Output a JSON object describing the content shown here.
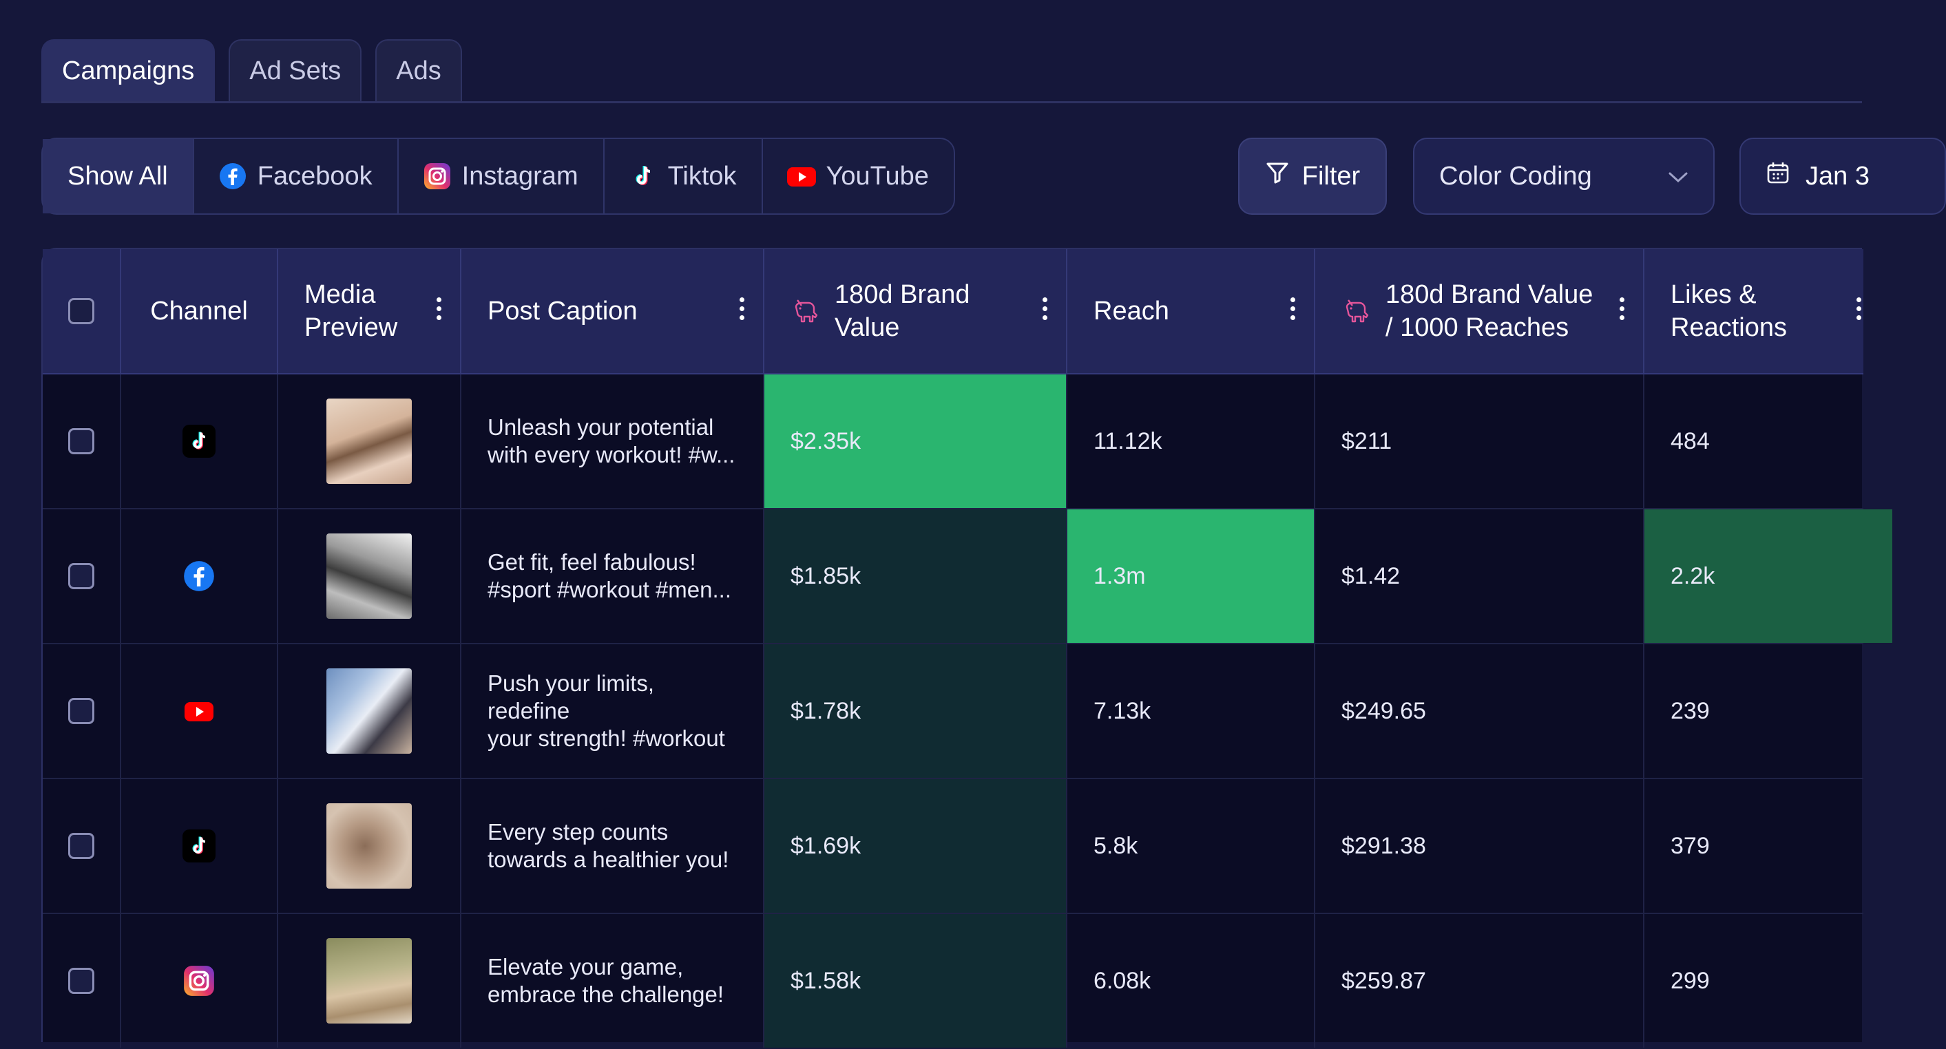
{
  "tabs": [
    "Campaigns",
    "Ad Sets",
    "Ads"
  ],
  "channel_filters": [
    {
      "label": "Show All",
      "icon": ""
    },
    {
      "label": "Facebook",
      "icon": "facebook-icon"
    },
    {
      "label": "Instagram",
      "icon": "instagram-icon"
    },
    {
      "label": "Tiktok",
      "icon": "tiktok-icon"
    },
    {
      "label": "YouTube",
      "icon": "youtube-icon"
    }
  ],
  "toolbar": {
    "filter_label": "Filter",
    "color_coding_label": "Color Coding",
    "date_label": "Jan 3"
  },
  "table": {
    "headers": {
      "channel": "Channel",
      "media_preview": "Media Preview",
      "post_caption": "Post Caption",
      "brand_value": "180d Brand Value",
      "reach": "Reach",
      "brand_value_per_reach": "180d Brand Value / 1000 Reaches",
      "likes": "Likes & Reactions"
    },
    "rows": [
      {
        "channel": "tiktok",
        "caption_1": "Unleash your potential",
        "caption_2": "with every workout! #w...",
        "brand_value": "$2.35k",
        "reach": "11.12k",
        "bv_per_reach": "$211",
        "likes": "484"
      },
      {
        "channel": "facebook",
        "caption_1": "Get fit, feel fabulous!",
        "caption_2": "#sport #workout #men...",
        "brand_value": "$1.85k",
        "reach": "1.3m",
        "bv_per_reach": "$1.42",
        "likes": "2.2k"
      },
      {
        "channel": "youtube",
        "caption_1": "Push your limits, redefine",
        "caption_2": "your strength! #workout",
        "brand_value": "$1.78k",
        "reach": "7.13k",
        "bv_per_reach": "$249.65",
        "likes": "239"
      },
      {
        "channel": "tiktok",
        "caption_1": "Every step counts",
        "caption_2": "towards a healthier you!",
        "brand_value": "$1.69k",
        "reach": "5.8k",
        "bv_per_reach": "$291.38",
        "likes": "379"
      },
      {
        "channel": "instagram",
        "caption_1": "Elevate your game,",
        "caption_2": "embrace the challenge!",
        "brand_value": "$1.58k",
        "reach": "6.08k",
        "bv_per_reach": "$259.87",
        "likes": "299"
      }
    ]
  },
  "colors": {
    "accent_green": "#2ab56f",
    "dark_green": "#102b32",
    "mid_green": "#1b6043"
  }
}
